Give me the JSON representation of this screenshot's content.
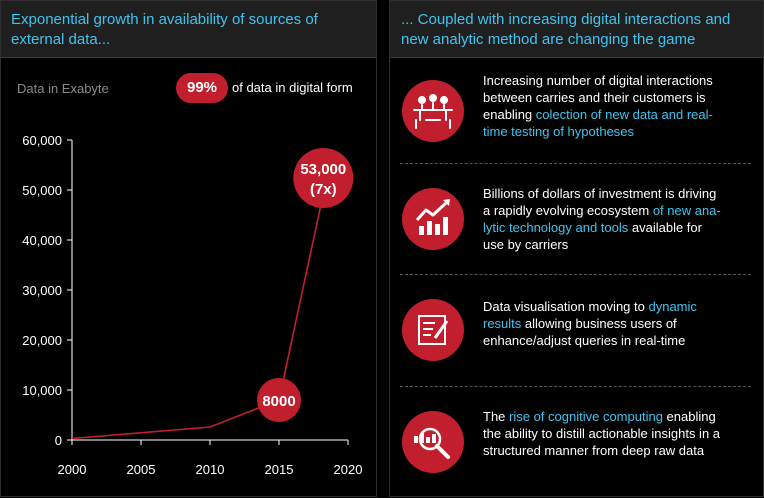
{
  "left_panel": {
    "title_line1": "Exponential growth in availability of sources of",
    "title_line2": "external data...",
    "data_unit_label": "Data in Exabyte",
    "digital_percent": "99%",
    "digital_text": "of data in digital form"
  },
  "chart_data": {
    "type": "line",
    "title": "",
    "xlabel": "",
    "ylabel": "",
    "x": [
      2000,
      2010,
      2015,
      2018.5
    ],
    "series": [
      {
        "values": [
          300,
          2600,
          8000,
          53000
        ]
      }
    ],
    "xlim": [
      2000,
      2020
    ],
    "ylim": [
      0,
      60000
    ],
    "x_ticks": [
      2000,
      2005,
      2010,
      2015,
      2020
    ],
    "x_tick_labels": [
      "2000",
      "2005",
      "2010",
      "2015",
      "2020"
    ],
    "y_ticks": [
      0,
      10000,
      20000,
      30000,
      40000,
      50000,
      60000
    ],
    "y_tick_labels": [
      "0",
      "10,000",
      "20,000",
      "30,000",
      "40,000",
      "50,000",
      "60,000"
    ],
    "grid": false,
    "line_color": "#c21f2e",
    "annotations": [
      {
        "x": 2015,
        "y": 8000,
        "lines": [
          "8000"
        ]
      },
      {
        "x": 2018.5,
        "y": 53000,
        "lines": [
          "53,000",
          "(7x)"
        ]
      }
    ]
  },
  "right_panel": {
    "title_line1": "... Coupled with increasing digital interactions and",
    "title_line2": "new analytic method are changing the game",
    "items": [
      {
        "icon": "meeting-people-icon",
        "lines": [
          [
            {
              "t": "Increasing number of digital interactions"
            }
          ],
          [
            {
              "t": "between carries and their customers is"
            }
          ],
          [
            {
              "t": "enabling "
            },
            {
              "t": "colection of new data and real-",
              "hl": true
            }
          ],
          [
            {
              "t": "time testing of hypotheses",
              "hl": true
            }
          ]
        ]
      },
      {
        "icon": "growth-chart-icon",
        "lines": [
          [
            {
              "t": "Billions of dollars of investment is driving"
            }
          ],
          [
            {
              "t": "a rapidly evolving ecosystem "
            },
            {
              "t": "of new ana-",
              "hl": true
            }
          ],
          [
            {
              "t": "lytic technology and tools",
              "hl": true
            },
            {
              "t": " available for"
            }
          ],
          [
            {
              "t": "use by carriers"
            }
          ]
        ]
      },
      {
        "icon": "edit-document-icon",
        "lines": [
          [
            {
              "t": "Data visualisation moving to "
            },
            {
              "t": "dynamic",
              "hl": true
            }
          ],
          [
            {
              "t": "results",
              "hl": true
            },
            {
              "t": " allowing business users of"
            }
          ],
          [
            {
              "t": "enhance/adjust queries in real-time"
            }
          ]
        ]
      },
      {
        "icon": "magnifier-chart-icon",
        "lines": [
          [
            {
              "t": "The "
            },
            {
              "t": "rise of cognitive computing",
              "hl": true
            },
            {
              "t": " enabling"
            }
          ],
          [
            {
              "t": "the ability to distill actionable insights in a"
            }
          ],
          [
            {
              "t": "structured manner from deep raw data"
            }
          ]
        ]
      }
    ]
  }
}
